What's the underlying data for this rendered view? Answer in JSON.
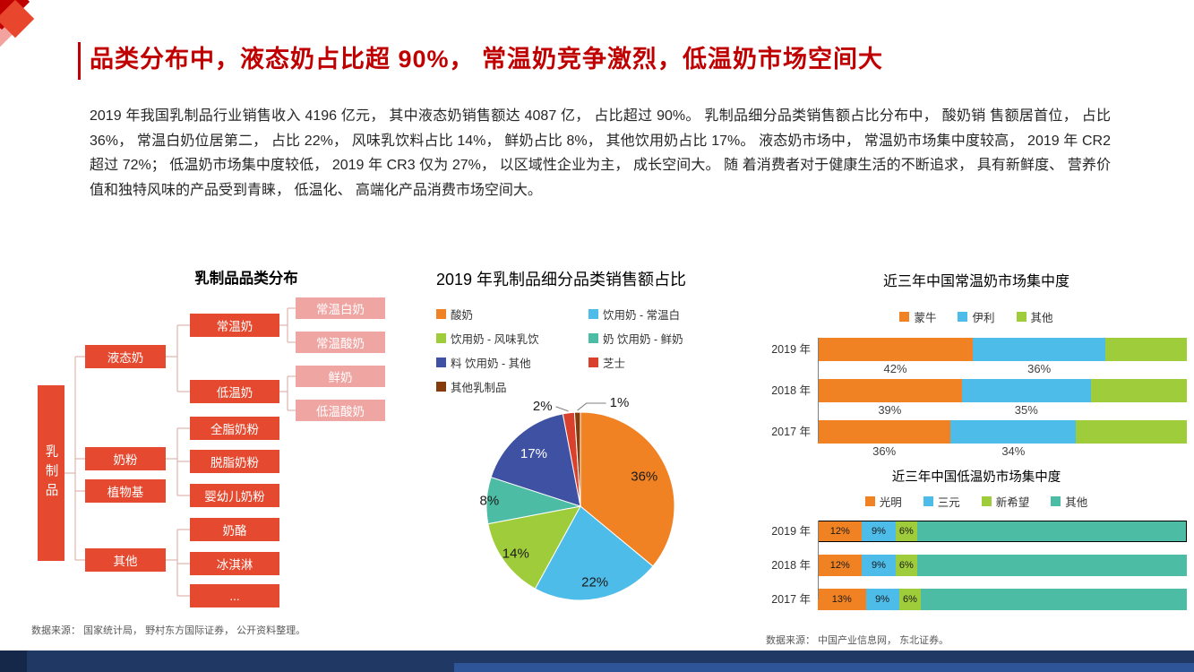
{
  "page": {
    "title": "品类分布中，液态奶占比超 90%， 常温奶竞争激烈，低温奶市场空间大",
    "body": "2019 年我国乳制品行业销售收入 4196 亿元， 其中液态奶销售额达 4087 亿， 占比超过 90%。 乳制品细分品类销售额占比分布中， 酸奶销 售额居首位， 占比 36%， 常温白奶位居第二， 占比 22%， 风味乳饮料占比 14%， 鲜奶占比 8%， 其他饮用奶占比 17%。 液态奶市场中， 常温奶市场集中度较高， 2019 年 CR2 超过 72%； 低温奶市场集中度较低， 2019 年 CR3 仅为 27%， 以区域性企业为主， 成长空间大。 随 着消费者对于健康生活的不断追求， 具有新鲜度、 营养价值和独特风味的产品受到青睐， 低温化、 高端化产品消费市场空间大。",
    "source_left": "数据来源： 国家统计局， 野村东方国际证券， 公开资料整理。",
    "source_right": "数据来源： 中国产业信息网， 东北证券。"
  },
  "colors": {
    "title_red": "#C00000",
    "node_red": "#E5492F",
    "node_pink": "#EFA6A3",
    "footer_navy": "#1F3864"
  },
  "tree": {
    "title": "乳制品品类分布",
    "root": "乳制品",
    "l1": [
      "液态奶",
      "奶粉",
      "植物基",
      "其他"
    ],
    "l2": [
      "常温奶",
      "低温奶",
      "全脂奶粉",
      "脱脂奶粉",
      "婴幼儿奶粉",
      "奶酪",
      "冰淇淋",
      "..."
    ],
    "l3": [
      "常温白奶",
      "常温酸奶",
      "鲜奶",
      "低温酸奶"
    ]
  },
  "chart_data": [
    {
      "type": "pie",
      "title": "2019 年乳制品细分品类销售额占比",
      "legend_position": "top",
      "legend": [
        {
          "label": "酸奶",
          "color": "#F08223"
        },
        {
          "label": "饮用奶 - 常温白",
          "color": "#4DBCE9"
        },
        {
          "label": "饮用奶 - 风味乳饮",
          "color": "#9FCC3B"
        },
        {
          "label": "奶 饮用奶 - 鲜奶",
          "color": "#4CBCA4"
        },
        {
          "label": "料 饮用奶 - 其他",
          "color": "#3F51A3"
        },
        {
          "label": "芝士",
          "color": "#D9412C"
        },
        {
          "label": "其他乳制品",
          "color": "#843C0C"
        }
      ],
      "slices": [
        {
          "label": "酸奶",
          "pct": 36,
          "color": "#F08223",
          "lp": "in",
          "rf": 0.75
        },
        {
          "label": "饮用奶 - 常温白奶",
          "pct": 22,
          "color": "#4DBCE9",
          "lp": "in",
          "rf": 0.82
        },
        {
          "label": "饮用奶 - 风味乳饮料",
          "pct": 14,
          "color": "#9FCC3B",
          "lp": "in",
          "rf": 0.85
        },
        {
          "label": "饮用奶 - 鲜奶",
          "pct": 8,
          "color": "#4CBCA4",
          "lp": "in",
          "rf": 0.97
        },
        {
          "label": "饮用奶 - 其他",
          "pct": 17,
          "color": "#3F51A3",
          "lp": "in",
          "rf": 0.75,
          "text": "#ffffff"
        },
        {
          "label": "芝士",
          "pct": 2,
          "color": "#D9412C",
          "lp": "out-left"
        },
        {
          "label": "其他乳制品",
          "pct": 1,
          "color": "#843C0C",
          "lp": "out-right"
        }
      ]
    },
    {
      "type": "bar",
      "title": "近三年中国常温奶市场集中度",
      "orientation": "horizontal-stacked",
      "categories": [
        "2019 年",
        "2018 年",
        "2017 年"
      ],
      "series": [
        {
          "name": "蒙牛",
          "color": "#F08223",
          "values": [
            42,
            39,
            36
          ]
        },
        {
          "name": "伊利",
          "color": "#4DBCE9",
          "values": [
            36,
            35,
            34
          ]
        },
        {
          "name": "其他",
          "color": "#9FCC3B",
          "values": [
            22,
            26,
            30
          ]
        }
      ],
      "value_labels": "below-first-two-series",
      "xlim": [
        0,
        100
      ]
    },
    {
      "type": "bar",
      "title": "近三年中国低温奶市场集中度",
      "orientation": "horizontal-stacked",
      "categories": [
        "2019 年",
        "2018 年",
        "2017 年"
      ],
      "series": [
        {
          "name": "光明",
          "color": "#F08223",
          "values": [
            12,
            12,
            13
          ]
        },
        {
          "name": "三元",
          "color": "#4DBCE9",
          "values": [
            9,
            9,
            9
          ]
        },
        {
          "name": "新希望",
          "color": "#9FCC3B",
          "values": [
            6,
            6,
            6
          ]
        },
        {
          "name": "其他",
          "color": "#4CBCA4",
          "values": [
            73,
            73,
            72
          ]
        }
      ],
      "value_labels": "inside-all-but-last-series",
      "highlight_row": 0,
      "xlim": [
        0,
        100
      ]
    }
  ]
}
